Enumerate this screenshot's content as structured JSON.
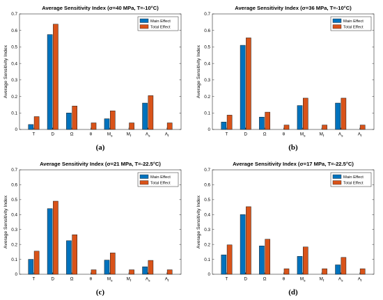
{
  "chart_data": [
    {
      "type": "bar",
      "panel": "(a)",
      "title": "Average Sensitivity Index (σ=40 MPa, T=-10°C)",
      "xlabel": "",
      "ylabel": "Average Sensitivity Index",
      "ylim": [
        0,
        0.7
      ],
      "yticks": [
        0,
        0.1,
        0.2,
        0.3,
        0.4,
        0.5,
        0.6,
        0.7
      ],
      "legend": "top-right",
      "categories": [
        {
          "base": "T",
          "sub": ""
        },
        {
          "base": "D",
          "sub": ""
        },
        {
          "base": "Ω",
          "sub": ""
        },
        {
          "base": "θ",
          "sub": ""
        },
        {
          "base": "M",
          "sub": "s"
        },
        {
          "base": "M",
          "sub": "f"
        },
        {
          "base": "A",
          "sub": "s"
        },
        {
          "base": "A",
          "sub": "f"
        }
      ],
      "series": [
        {
          "name": "Main Effect",
          "color": "#0072BD",
          "values": [
            0.03,
            0.575,
            0.1,
            0.0,
            0.065,
            0.0,
            0.16,
            0.0
          ]
        },
        {
          "name": "Total Effect",
          "color": "#D95319",
          "values": [
            0.078,
            0.638,
            0.142,
            0.04,
            0.113,
            0.04,
            0.205,
            0.04
          ]
        }
      ]
    },
    {
      "type": "bar",
      "panel": "(b)",
      "title": "Average Sensitivity Index (σ=36 MPa, T=-10°C)",
      "xlabel": "",
      "ylabel": "Average Sensitivity Index",
      "ylim": [
        0,
        0.7
      ],
      "yticks": [
        0,
        0.1,
        0.2,
        0.3,
        0.4,
        0.5,
        0.6,
        0.7
      ],
      "legend": "top-right",
      "categories": [
        {
          "base": "T",
          "sub": ""
        },
        {
          "base": "D",
          "sub": ""
        },
        {
          "base": "Ω",
          "sub": ""
        },
        {
          "base": "θ",
          "sub": ""
        },
        {
          "base": "M",
          "sub": "s"
        },
        {
          "base": "M",
          "sub": "f"
        },
        {
          "base": "A",
          "sub": "s"
        },
        {
          "base": "A",
          "sub": "f"
        }
      ],
      "series": [
        {
          "name": "Main Effect",
          "color": "#0072BD",
          "values": [
            0.045,
            0.51,
            0.075,
            0.0,
            0.145,
            0.0,
            0.16,
            0.0
          ]
        },
        {
          "name": "Total Effect",
          "color": "#D95319",
          "values": [
            0.087,
            0.555,
            0.105,
            0.027,
            0.19,
            0.027,
            0.19,
            0.027
          ]
        }
      ]
    },
    {
      "type": "bar",
      "panel": "(c)",
      "title": "Average Sensitivity Index (σ=21 MPa, T=-22.5°C)",
      "xlabel": "",
      "ylabel": "Average Sensitivity Index",
      "ylim": [
        0,
        0.7
      ],
      "yticks": [
        0,
        0.1,
        0.2,
        0.3,
        0.4,
        0.5,
        0.6,
        0.7
      ],
      "legend": "top-right",
      "categories": [
        {
          "base": "T",
          "sub": ""
        },
        {
          "base": "D",
          "sub": ""
        },
        {
          "base": "Ω",
          "sub": ""
        },
        {
          "base": "θ",
          "sub": ""
        },
        {
          "base": "M",
          "sub": "s"
        },
        {
          "base": "M",
          "sub": "f"
        },
        {
          "base": "A",
          "sub": "s"
        },
        {
          "base": "A",
          "sub": "f"
        }
      ],
      "series": [
        {
          "name": "Main Effect",
          "color": "#0072BD",
          "values": [
            0.1,
            0.44,
            0.225,
            0.0,
            0.095,
            0.0,
            0.05,
            0.0
          ]
        },
        {
          "name": "Total Effect",
          "color": "#D95319",
          "values": [
            0.155,
            0.49,
            0.265,
            0.03,
            0.143,
            0.03,
            0.093,
            0.03
          ]
        }
      ]
    },
    {
      "type": "bar",
      "panel": "(d)",
      "title": "Average Sensitivity Index (σ=17 MPa, T=-22.5°C)",
      "xlabel": "",
      "ylabel": "Average Sensitivity Index",
      "ylim": [
        0,
        0.7
      ],
      "yticks": [
        0,
        0.1,
        0.2,
        0.3,
        0.4,
        0.5,
        0.6,
        0.7
      ],
      "legend": "top-right",
      "categories": [
        {
          "base": "T",
          "sub": ""
        },
        {
          "base": "D",
          "sub": ""
        },
        {
          "base": "Ω",
          "sub": ""
        },
        {
          "base": "θ",
          "sub": ""
        },
        {
          "base": "M",
          "sub": "s"
        },
        {
          "base": "M",
          "sub": "f"
        },
        {
          "base": "A",
          "sub": "s"
        },
        {
          "base": "A",
          "sub": "f"
        }
      ],
      "series": [
        {
          "name": "Main Effect",
          "color": "#0072BD",
          "values": [
            0.13,
            0.4,
            0.19,
            0.0,
            0.12,
            0.0,
            0.063,
            0.0
          ]
        },
        {
          "name": "Total Effect",
          "color": "#D95319",
          "values": [
            0.197,
            0.453,
            0.235,
            0.037,
            0.183,
            0.037,
            0.113,
            0.037
          ]
        }
      ]
    }
  ]
}
